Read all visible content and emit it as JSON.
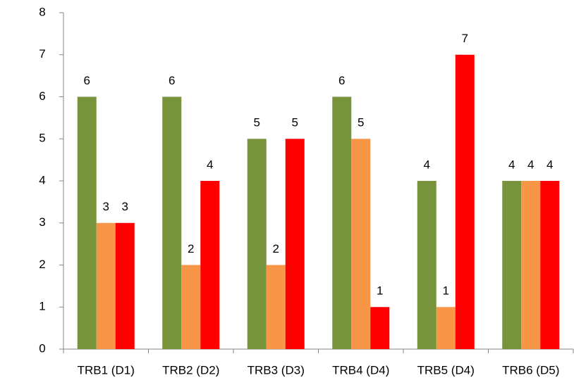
{
  "chart_data": {
    "type": "bar",
    "categories": [
      "TRB1 (D1)",
      "TRB2 (D2)",
      "TRB3 (D3)",
      "TRB4 (D4)",
      "TRB5 (D4)",
      "TRB6 (D5)"
    ],
    "series": [
      {
        "color": "#77933c",
        "values": [
          6,
          6,
          5,
          6,
          4,
          4
        ]
      },
      {
        "color": "#f79646",
        "values": [
          3,
          2,
          2,
          5,
          1,
          4
        ]
      },
      {
        "color": "#ff0000",
        "values": [
          3,
          4,
          5,
          1,
          7,
          4
        ]
      }
    ],
    "ylim": [
      0,
      8
    ],
    "yticks": [
      0,
      1,
      2,
      3,
      4,
      5,
      6,
      7,
      8
    ],
    "grid": false
  }
}
